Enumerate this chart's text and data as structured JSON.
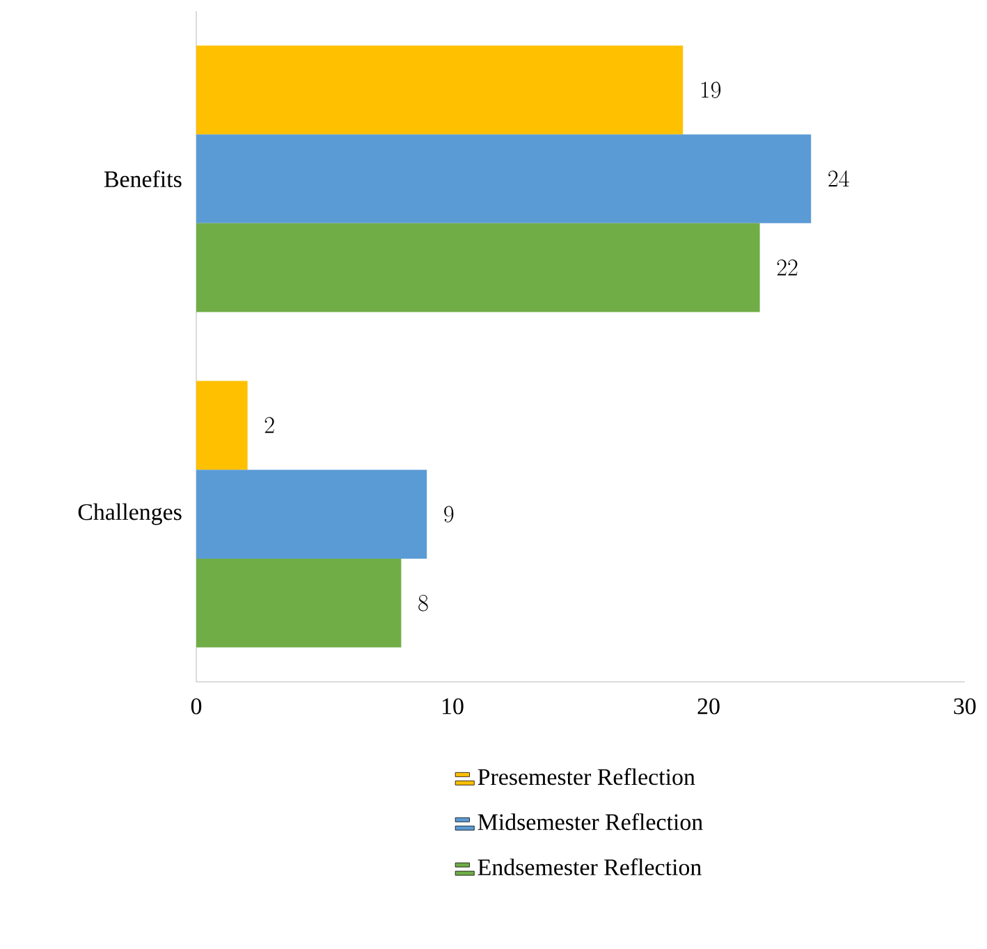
{
  "chart_data": {
    "type": "bar",
    "orientation": "horizontal",
    "categories": [
      "Benefits",
      "Challenges"
    ],
    "series": [
      {
        "name": "Presemester Reflection",
        "color": "#ffc000",
        "values": [
          19,
          2
        ]
      },
      {
        "name": "Midsemester Reflection",
        "color": "#5b9bd5",
        "values": [
          24,
          9
        ]
      },
      {
        "name": "Endsemester Reflection",
        "color": "#70ad47",
        "values": [
          22,
          8
        ]
      }
    ],
    "xlim": [
      0,
      30
    ],
    "xticks": [
      0,
      10,
      20,
      30
    ],
    "data_labels": true,
    "legend": "bottom"
  }
}
